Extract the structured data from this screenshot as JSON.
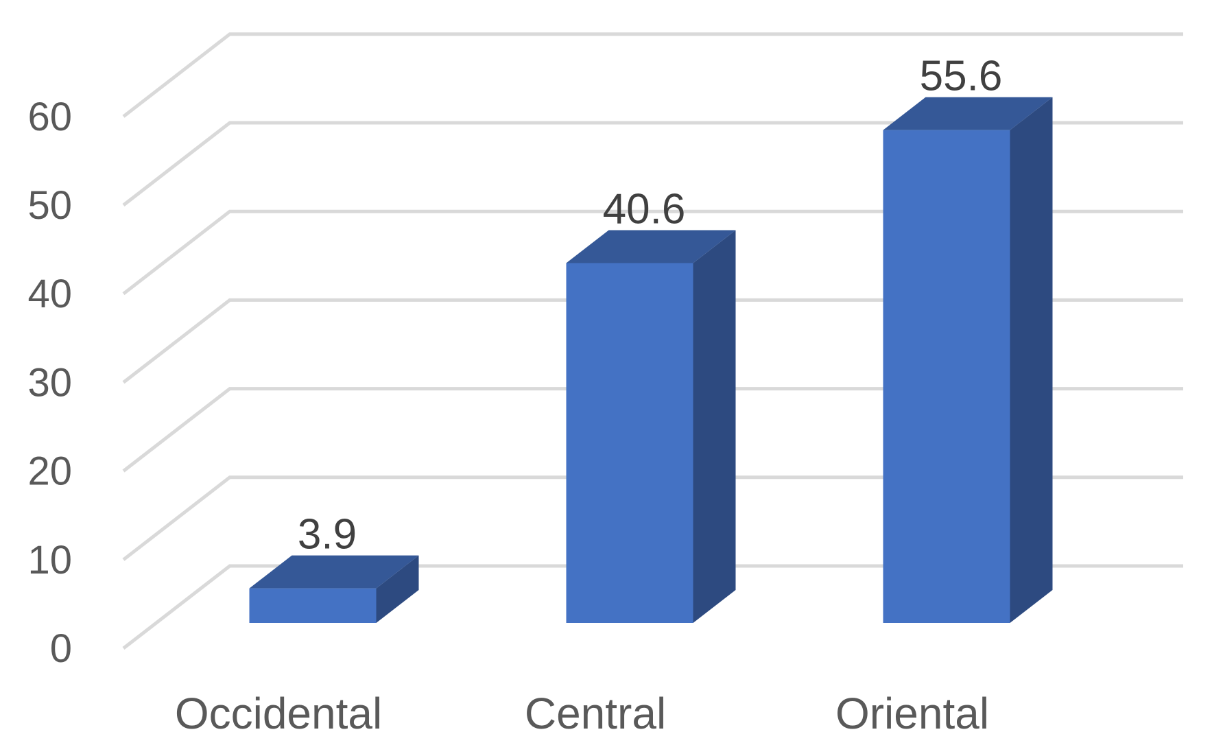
{
  "chart_data": {
    "type": "bar",
    "style": "3d-column",
    "categories": [
      "Occidental",
      "Central",
      "Oriental"
    ],
    "values": [
      3.9,
      40.6,
      55.6
    ],
    "data_labels": [
      "3.9",
      "40.6",
      "55.6"
    ],
    "title": "",
    "xlabel": "",
    "ylabel": "",
    "ylim": [
      0,
      60
    ],
    "yticks": [
      "0",
      "10",
      "20",
      "30",
      "40",
      "50",
      "60"
    ],
    "grid": true,
    "legend": "none",
    "colors": {
      "front": "#4472c4",
      "top": "#355897",
      "side": "#2d4a80",
      "grid": "#d9d9d9",
      "text": "#595959",
      "label_text": "#404040"
    }
  }
}
